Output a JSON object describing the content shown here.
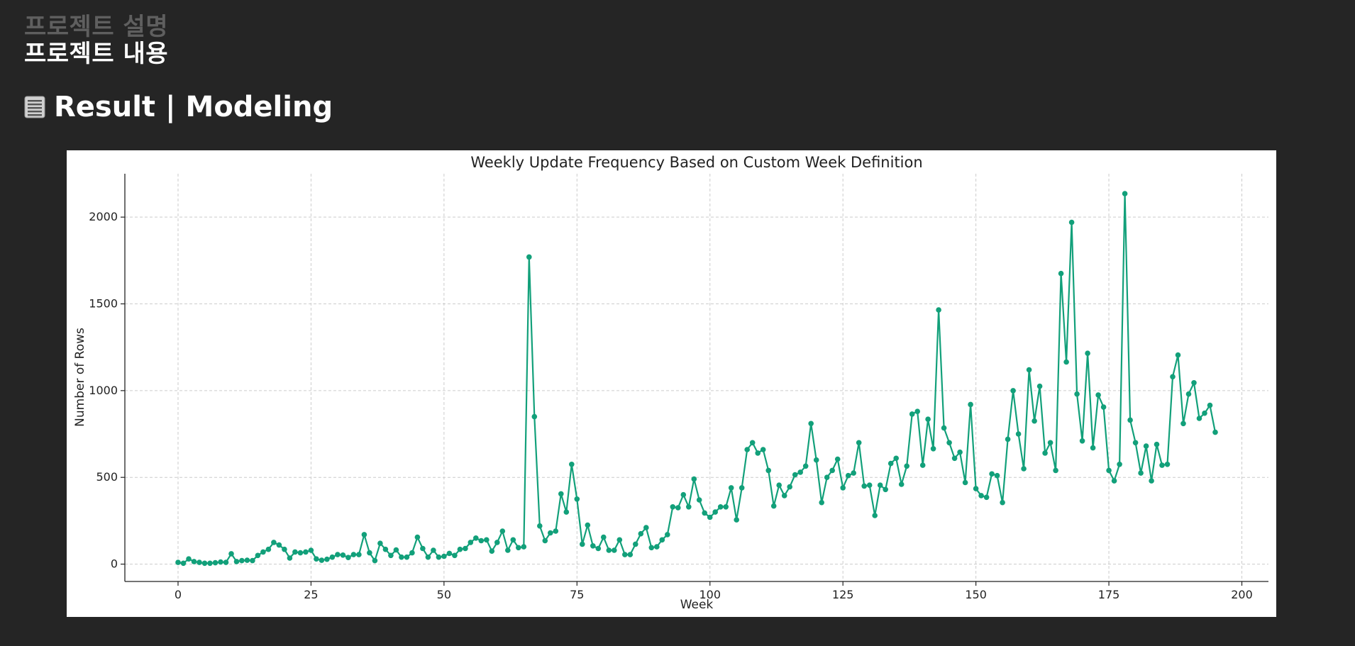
{
  "page": {
    "prev_heading": "프로젝트 설명",
    "current_heading": "프로젝트 내용",
    "section_title": "Result | Modeling",
    "section_icon": "document-lines-icon"
  },
  "colors": {
    "background": "#252525",
    "series": "#12a07a",
    "grid": "#cccccc"
  },
  "chart_data": {
    "type": "line",
    "title": "Weekly Update Frequency Based on Custom Week Definition",
    "xlabel": "Week",
    "ylabel": "Number of Rows",
    "xlim": [
      -10,
      205
    ],
    "ylim": [
      -100,
      2250
    ],
    "xticks": [
      0,
      25,
      50,
      75,
      100,
      125,
      150,
      175,
      200
    ],
    "yticks": [
      0,
      500,
      1000,
      1500,
      2000
    ],
    "grid": true,
    "marker": "circle",
    "series": [
      {
        "name": "",
        "x_start": 0,
        "x_step": 1,
        "values": [
          10,
          5,
          30,
          15,
          10,
          5,
          5,
          8,
          12,
          10,
          60,
          15,
          20,
          22,
          20,
          50,
          70,
          85,
          125,
          110,
          85,
          35,
          70,
          65,
          70,
          80,
          30,
          22,
          28,
          40,
          55,
          52,
          38,
          55,
          55,
          170,
          65,
          20,
          120,
          85,
          50,
          82,
          40,
          40,
          65,
          155,
          90,
          40,
          80,
          40,
          45,
          62,
          50,
          85,
          90,
          125,
          150,
          135,
          140,
          75,
          125,
          190,
          80,
          140,
          95,
          100,
          1770,
          850,
          220,
          135,
          180,
          190,
          405,
          300,
          575,
          375,
          115,
          225,
          105,
          90,
          155,
          80,
          80,
          140,
          55,
          55,
          115,
          175,
          210,
          95,
          100,
          140,
          170,
          330,
          325,
          400,
          330,
          490,
          370,
          295,
          270,
          300,
          330,
          330,
          440,
          255,
          440,
          660,
          700,
          640,
          660,
          540,
          335,
          455,
          395,
          445,
          515,
          530,
          565,
          810,
          600,
          355,
          500,
          540,
          605,
          440,
          510,
          525,
          700,
          450,
          455,
          280,
          455,
          430,
          580,
          610,
          460,
          565,
          865,
          880,
          570,
          835,
          665,
          1465,
          785,
          700,
          610,
          645,
          470,
          920,
          435,
          395,
          385,
          520,
          510,
          355,
          720,
          1000,
          750,
          550,
          1120,
          825,
          1025,
          640,
          700,
          540,
          1675,
          1165,
          1970,
          980,
          710,
          1215,
          670,
          975,
          905,
          540,
          480,
          575,
          2135,
          830,
          700,
          525,
          680,
          480,
          690,
          570,
          575,
          1080,
          1205,
          810,
          980,
          1045,
          840,
          870,
          915,
          760
        ]
      }
    ]
  }
}
